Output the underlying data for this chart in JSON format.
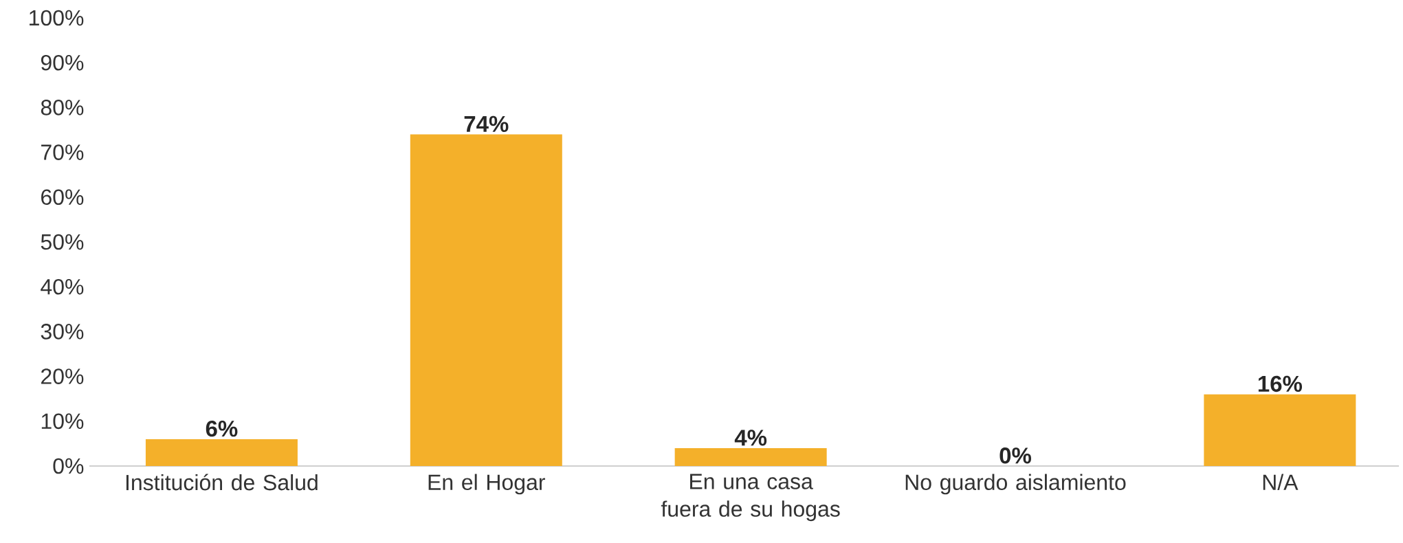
{
  "chart_data": {
    "type": "bar",
    "categories": [
      "Institución de Salud",
      "En el Hogar",
      "En una casa fuera de su hogas",
      "No guardo aislamiento",
      "N/A"
    ],
    "values": [
      6,
      74,
      4,
      0,
      16
    ],
    "value_labels": [
      "6%",
      "74%",
      "4%",
      "0%",
      "16%"
    ],
    "color": "#f4b02a",
    "ylim": [
      0,
      100
    ],
    "yticks": [
      {
        "value": 0,
        "label": "0%"
      },
      {
        "value": 10,
        "label": "10%"
      },
      {
        "value": 20,
        "label": "20%"
      },
      {
        "value": 30,
        "label": "30%"
      },
      {
        "value": 40,
        "label": "40%"
      },
      {
        "value": 50,
        "label": "50%"
      },
      {
        "value": 60,
        "label": "60%"
      },
      {
        "value": 70,
        "label": "70%"
      },
      {
        "value": 80,
        "label": "80%"
      },
      {
        "value": 90,
        "label": "90%"
      },
      {
        "value": 100,
        "label": "100%"
      }
    ],
    "grid": false
  }
}
